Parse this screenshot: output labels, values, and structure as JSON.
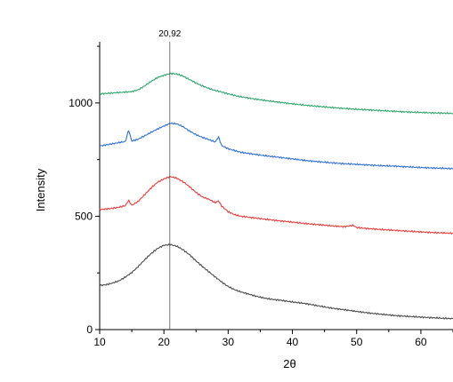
{
  "chart_data": {
    "type": "line",
    "xlabel": "2θ",
    "ylabel": "Intensity",
    "xlim": [
      10,
      65
    ],
    "ylim": [
      0,
      1270
    ],
    "x_ticks": [
      10,
      20,
      30,
      40,
      50,
      60
    ],
    "y_ticks": [
      0,
      500,
      1000
    ],
    "grid": false,
    "legend": "none",
    "annotation": {
      "x": 20.92,
      "label": "20,92"
    },
    "series": [
      {
        "color": "#4a4a4a",
        "points": [
          [
            10,
            195
          ],
          [
            11,
            198
          ],
          [
            12,
            205
          ],
          [
            13,
            215
          ],
          [
            14,
            232
          ],
          [
            15,
            252
          ],
          [
            16,
            278
          ],
          [
            17,
            308
          ],
          [
            18,
            335
          ],
          [
            19,
            358
          ],
          [
            20,
            372
          ],
          [
            21,
            375
          ],
          [
            22,
            368
          ],
          [
            23,
            352
          ],
          [
            24,
            330
          ],
          [
            25,
            303
          ],
          [
            26,
            278
          ],
          [
            27,
            255
          ],
          [
            28,
            232
          ],
          [
            29,
            210
          ],
          [
            30,
            190
          ],
          [
            31,
            176
          ],
          [
            32,
            166
          ],
          [
            33,
            158
          ],
          [
            34,
            150
          ],
          [
            35,
            143
          ],
          [
            36,
            137
          ],
          [
            37,
            133
          ],
          [
            38,
            130
          ],
          [
            39,
            126
          ],
          [
            40,
            122
          ],
          [
            42,
            115
          ],
          [
            44,
            105
          ],
          [
            46,
            95
          ],
          [
            48,
            88
          ],
          [
            50,
            80
          ],
          [
            52,
            73
          ],
          [
            54,
            67
          ],
          [
            56,
            62
          ],
          [
            58,
            58
          ],
          [
            60,
            55
          ],
          [
            62,
            52
          ],
          [
            65,
            48
          ]
        ]
      },
      {
        "color": "#ee3b3b",
        "points": [
          [
            10,
            530
          ],
          [
            11,
            532
          ],
          [
            12,
            535
          ],
          [
            13,
            540
          ],
          [
            14,
            547
          ],
          [
            14.5,
            570
          ],
          [
            15,
            548
          ],
          [
            16,
            566
          ],
          [
            17,
            595
          ],
          [
            18,
            625
          ],
          [
            19,
            650
          ],
          [
            20,
            665
          ],
          [
            21,
            675
          ],
          [
            22,
            668
          ],
          [
            23,
            652
          ],
          [
            24,
            630
          ],
          [
            25,
            605
          ],
          [
            26,
            585
          ],
          [
            27,
            575
          ],
          [
            28,
            560
          ],
          [
            28.5,
            568
          ],
          [
            29,
            545
          ],
          [
            30,
            520
          ],
          [
            31,
            507
          ],
          [
            32,
            500
          ],
          [
            34,
            493
          ],
          [
            36,
            486
          ],
          [
            38,
            480
          ],
          [
            40,
            474
          ],
          [
            42,
            468
          ],
          [
            44,
            463
          ],
          [
            46,
            458
          ],
          [
            48,
            454
          ],
          [
            49.5,
            460
          ],
          [
            50,
            450
          ],
          [
            52,
            445
          ],
          [
            54,
            441
          ],
          [
            56,
            438
          ],
          [
            58,
            434
          ],
          [
            60,
            431
          ],
          [
            62,
            428
          ],
          [
            65,
            425
          ]
        ]
      },
      {
        "color": "#2e6fd6",
        "points": [
          [
            10,
            810
          ],
          [
            11,
            815
          ],
          [
            12,
            820
          ],
          [
            13,
            825
          ],
          [
            14,
            830
          ],
          [
            14.5,
            880
          ],
          [
            15,
            832
          ],
          [
            16,
            840
          ],
          [
            17,
            855
          ],
          [
            18,
            870
          ],
          [
            19,
            885
          ],
          [
            20,
            898
          ],
          [
            21,
            910
          ],
          [
            22,
            908
          ],
          [
            23,
            895
          ],
          [
            24,
            876
          ],
          [
            25,
            860
          ],
          [
            26,
            848
          ],
          [
            27,
            838
          ],
          [
            28,
            828
          ],
          [
            28.5,
            850
          ],
          [
            29,
            812
          ],
          [
            30,
            798
          ],
          [
            31,
            790
          ],
          [
            32,
            782
          ],
          [
            34,
            774
          ],
          [
            36,
            766
          ],
          [
            38,
            760
          ],
          [
            40,
            753
          ],
          [
            42,
            746
          ],
          [
            44,
            741
          ],
          [
            46,
            736
          ],
          [
            48,
            732
          ],
          [
            50,
            729
          ],
          [
            52,
            726
          ],
          [
            54,
            723
          ],
          [
            56,
            721
          ],
          [
            58,
            718
          ],
          [
            60,
            715
          ],
          [
            62,
            713
          ],
          [
            65,
            710
          ]
        ]
      },
      {
        "color": "#2ea66b",
        "points": [
          [
            10,
            1040
          ],
          [
            11,
            1042
          ],
          [
            12,
            1044
          ],
          [
            13,
            1046
          ],
          [
            14,
            1048
          ],
          [
            15,
            1050
          ],
          [
            16,
            1058
          ],
          [
            17,
            1075
          ],
          [
            18,
            1095
          ],
          [
            19,
            1112
          ],
          [
            20,
            1122
          ],
          [
            21,
            1130
          ],
          [
            22,
            1128
          ],
          [
            23,
            1118
          ],
          [
            24,
            1103
          ],
          [
            25,
            1088
          ],
          [
            26,
            1075
          ],
          [
            27,
            1064
          ],
          [
            28,
            1055
          ],
          [
            29,
            1048
          ],
          [
            30,
            1040
          ],
          [
            31,
            1033
          ],
          [
            32,
            1027
          ],
          [
            34,
            1018
          ],
          [
            36,
            1010
          ],
          [
            38,
            1003
          ],
          [
            40,
            996
          ],
          [
            42,
            990
          ],
          [
            44,
            985
          ],
          [
            46,
            980
          ],
          [
            48,
            976
          ],
          [
            50,
            972
          ],
          [
            52,
            969
          ],
          [
            54,
            966
          ],
          [
            56,
            963
          ],
          [
            58,
            960
          ],
          [
            60,
            958
          ],
          [
            62,
            956
          ],
          [
            65,
            954
          ]
        ]
      }
    ]
  }
}
